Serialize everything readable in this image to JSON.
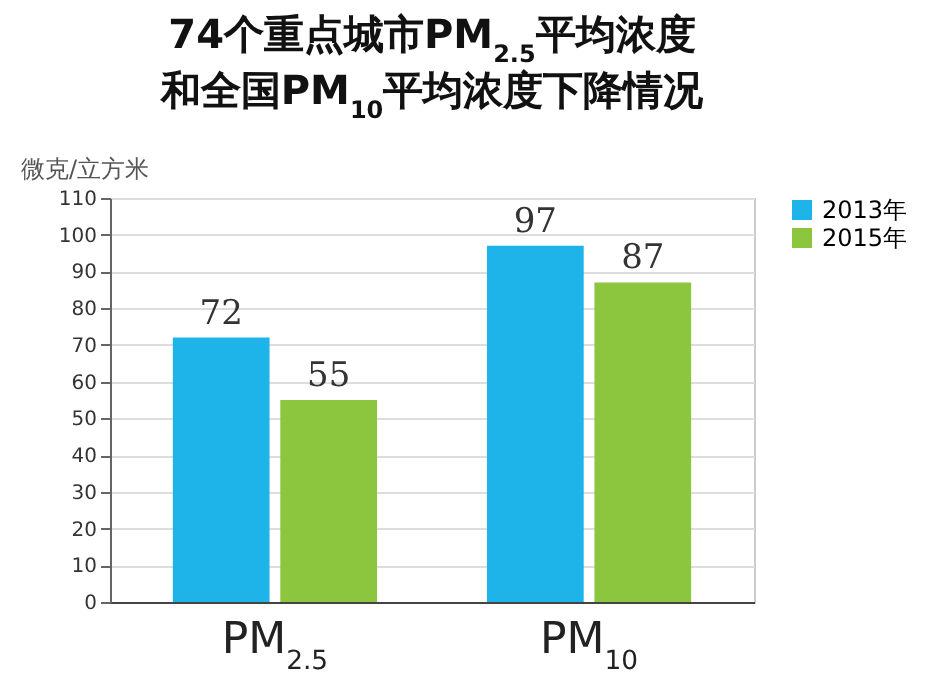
{
  "chart_data": {
    "type": "bar",
    "title": [
      "74个重点城市PM$_{2.5}$平均浓度",
      "和全国PM$_{10}$平均浓度下降情况"
    ],
    "ylabel": "微克/立方米",
    "categories": [
      "PM$_{2.5}$",
      "PM$_{10}$"
    ],
    "series": [
      {
        "name": "2013年",
        "color": "#1eb4ea",
        "values": [
          72,
          97
        ]
      },
      {
        "name": "2015年",
        "color": "#8cc63f",
        "values": [
          55,
          87
        ]
      }
    ],
    "ylim": [
      0,
      110
    ],
    "yticks": [
      0,
      10,
      20,
      30,
      40,
      50,
      60,
      70,
      80,
      90,
      100,
      110
    ],
    "grid": "y",
    "legend": "right",
    "data_labels": true
  }
}
